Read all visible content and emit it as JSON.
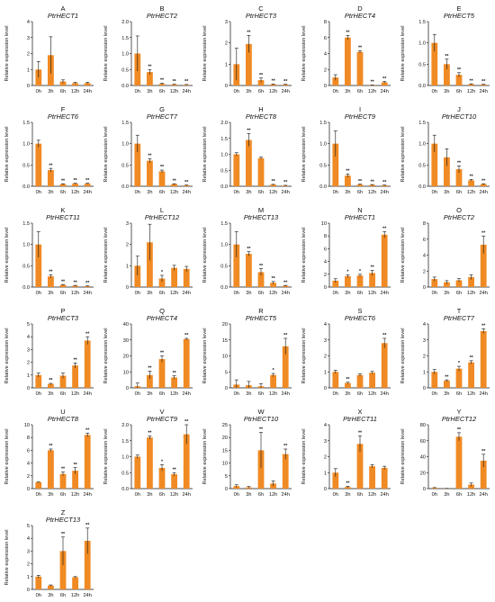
{
  "figure": {
    "ylabel": "Relative expression level",
    "categories": [
      "0h",
      "3h",
      "6h",
      "12h",
      "24h"
    ],
    "bar_color": "#f08a24"
  },
  "chart_data": [
    {
      "type": "bar",
      "letter": "A",
      "title": "PtrHECT1",
      "categories": [
        "0h",
        "3h",
        "6h",
        "12h",
        "24h"
      ],
      "values": [
        1.0,
        1.9,
        0.25,
        0.15,
        0.15
      ],
      "errors": [
        0.5,
        1.15,
        0.1,
        0.05,
        0.05
      ],
      "sig": [
        "",
        "",
        "",
        "",
        ""
      ],
      "ylabel": "Relative expression level",
      "ylim": [
        0,
        4
      ],
      "yticks": [
        "0",
        "1",
        "2",
        "3",
        "4"
      ]
    },
    {
      "type": "bar",
      "letter": "B",
      "title": "PtrHECT2",
      "categories": [
        "0h",
        "3h",
        "6h",
        "12h",
        "24h"
      ],
      "values": [
        1.0,
        0.42,
        0.05,
        0.03,
        0.02
      ],
      "errors": [
        0.55,
        0.08,
        0.02,
        0.01,
        0.01
      ],
      "sig": [
        "",
        "**",
        "**",
        "**",
        "**"
      ],
      "ylabel": "Relative expression level",
      "ylim": [
        0,
        2.0
      ],
      "yticks": [
        "0.0",
        "0.5",
        "1.0",
        "1.5",
        "2.0"
      ]
    },
    {
      "type": "bar",
      "letter": "C",
      "title": "PtrHECT3",
      "categories": [
        "0h",
        "3h",
        "6h",
        "12h",
        "24h"
      ],
      "values": [
        1.0,
        1.95,
        0.25,
        0.05,
        0.04
      ],
      "errors": [
        0.75,
        0.4,
        0.1,
        0.02,
        0.02
      ],
      "sig": [
        "",
        "**",
        "**",
        "**",
        "**"
      ],
      "ylabel": "Relative expression level",
      "ylim": [
        0,
        3
      ],
      "yticks": [
        "0",
        "1",
        "2",
        "3"
      ]
    },
    {
      "type": "bar",
      "letter": "D",
      "title": "PtrHECT4",
      "categories": [
        "0h",
        "3h",
        "6h",
        "12h",
        "24h"
      ],
      "values": [
        1.0,
        6.0,
        4.2,
        0.05,
        0.4
      ],
      "errors": [
        0.35,
        0.25,
        0.15,
        0.02,
        0.1
      ],
      "sig": [
        "",
        "**",
        "**",
        "**",
        "**"
      ],
      "ylabel": "Relative expression level",
      "ylim": [
        0,
        8
      ],
      "yticks": [
        "0",
        "2",
        "4",
        "6",
        "8"
      ]
    },
    {
      "type": "bar",
      "letter": "E",
      "title": "PtrHECT5",
      "categories": [
        "0h",
        "3h",
        "6h",
        "12h",
        "24h"
      ],
      "values": [
        1.0,
        0.5,
        0.25,
        0.03,
        0.02
      ],
      "errors": [
        0.2,
        0.12,
        0.05,
        0.01,
        0.01
      ],
      "sig": [
        "",
        "**",
        "**",
        "**",
        "**"
      ],
      "ylabel": "Relative expression level",
      "ylim": [
        0,
        1.5
      ],
      "yticks": [
        "0.0",
        "0.5",
        "1.0",
        "1.5"
      ]
    },
    {
      "type": "bar",
      "letter": "F",
      "title": "PtrHECT6",
      "categories": [
        "0h",
        "3h",
        "6h",
        "12h",
        "24h"
      ],
      "values": [
        1.0,
        0.38,
        0.05,
        0.06,
        0.06
      ],
      "errors": [
        0.08,
        0.04,
        0.01,
        0.01,
        0.01
      ],
      "sig": [
        "",
        "**",
        "**",
        "**",
        "**"
      ],
      "ylabel": "Relative expression level",
      "ylim": [
        0,
        1.5
      ],
      "yticks": [
        "0.0",
        "0.5",
        "1.0",
        "1.5"
      ]
    },
    {
      "type": "bar",
      "letter": "G",
      "title": "PtrHECT7",
      "categories": [
        "0h",
        "3h",
        "6h",
        "12h",
        "24h"
      ],
      "values": [
        1.0,
        0.6,
        0.35,
        0.05,
        0.02
      ],
      "errors": [
        0.2,
        0.05,
        0.03,
        0.01,
        0.01
      ],
      "sig": [
        "",
        "**",
        "**",
        "**",
        "**"
      ],
      "ylabel": "Relative expression level",
      "ylim": [
        0,
        1.5
      ],
      "yticks": [
        "0.0",
        "0.5",
        "1.0",
        "1.5"
      ]
    },
    {
      "type": "bar",
      "letter": "H",
      "title": "PtrHECT8",
      "categories": [
        "0h",
        "3h",
        "6h",
        "12h",
        "24h"
      ],
      "values": [
        1.0,
        1.45,
        0.88,
        0.05,
        0.02
      ],
      "errors": [
        0.05,
        0.2,
        0.03,
        0.01,
        0.01
      ],
      "sig": [
        "",
        "**",
        "",
        "**",
        "**"
      ],
      "ylabel": "Relative expression level",
      "ylim": [
        0,
        2.0
      ],
      "yticks": [
        "0.0",
        "0.5",
        "1.0",
        "1.5",
        "2.0"
      ]
    },
    {
      "type": "bar",
      "letter": "I",
      "title": "PtrHECT9",
      "categories": [
        "0h",
        "3h",
        "6h",
        "12h",
        "24h"
      ],
      "values": [
        1.0,
        0.25,
        0.04,
        0.03,
        0.02
      ],
      "errors": [
        0.3,
        0.04,
        0.01,
        0.01,
        0.01
      ],
      "sig": [
        "",
        "**",
        "**",
        "**",
        "**"
      ],
      "ylabel": "Relative expression level",
      "ylim": [
        0,
        1.5
      ],
      "yticks": [
        "0.0",
        "0.5",
        "1.0",
        "1.5"
      ]
    },
    {
      "type": "bar",
      "letter": "J",
      "title": "PtrHECT10",
      "categories": [
        "0h",
        "3h",
        "6h",
        "12h",
        "24h"
      ],
      "values": [
        1.0,
        0.68,
        0.4,
        0.14,
        0.05
      ],
      "errors": [
        0.2,
        0.2,
        0.08,
        0.02,
        0.01
      ],
      "sig": [
        "",
        "",
        "**",
        "**",
        "**"
      ],
      "ylabel": "Relative expression level",
      "ylim": [
        0,
        1.5
      ],
      "yticks": [
        "0.0",
        "0.5",
        "1.0",
        "1.5"
      ]
    },
    {
      "type": "bar",
      "letter": "K",
      "title": "PtrHECT11",
      "categories": [
        "0h",
        "3h",
        "6h",
        "12h",
        "24h"
      ],
      "values": [
        1.0,
        0.25,
        0.05,
        0.03,
        0.02
      ],
      "errors": [
        0.3,
        0.04,
        0.01,
        0.01,
        0.01
      ],
      "sig": [
        "",
        "**",
        "**",
        "**",
        "**"
      ],
      "ylabel": "Relative expression level",
      "ylim": [
        0,
        1.5
      ],
      "yticks": [
        "0.0",
        "0.5",
        "1.0",
        "1.5"
      ]
    },
    {
      "type": "bar",
      "letter": "L",
      "title": "PtrHECT12",
      "categories": [
        "0h",
        "3h",
        "6h",
        "12h",
        "24h"
      ],
      "values": [
        1.0,
        2.1,
        0.4,
        0.9,
        0.85
      ],
      "errors": [
        0.45,
        0.85,
        0.15,
        0.12,
        0.12
      ],
      "sig": [
        "",
        "",
        "*",
        "",
        ""
      ],
      "ylabel": "Relative expression level",
      "ylim": [
        0,
        3
      ],
      "yticks": [
        "0",
        "1",
        "2",
        "3"
      ]
    },
    {
      "type": "bar",
      "letter": "M",
      "title": "PtrHECT13",
      "categories": [
        "0h",
        "3h",
        "6h",
        "12h",
        "24h"
      ],
      "values": [
        1.0,
        0.78,
        0.35,
        0.1,
        0.03
      ],
      "errors": [
        0.3,
        0.05,
        0.08,
        0.03,
        0.01
      ],
      "sig": [
        "",
        "**",
        "**",
        "**",
        "**"
      ],
      "ylabel": "Relative expression level",
      "ylim": [
        0,
        1.5
      ],
      "yticks": [
        "0.0",
        "0.5",
        "1.0",
        "1.5"
      ]
    },
    {
      "type": "bar",
      "letter": "N",
      "title": "PtrHECT1",
      "categories": [
        "0h",
        "3h",
        "6h",
        "12h",
        "24h"
      ],
      "values": [
        1.0,
        1.7,
        1.8,
        2.2,
        8.2
      ],
      "errors": [
        0.3,
        0.2,
        0.2,
        0.4,
        0.5
      ],
      "sig": [
        "",
        "*",
        "*",
        "**",
        "**"
      ],
      "ylabel": "Relative expression level",
      "ylim": [
        0,
        10
      ],
      "yticks": [
        "0",
        "2",
        "4",
        "6",
        "8",
        "10"
      ]
    },
    {
      "type": "bar",
      "letter": "O",
      "title": "PtrHECT2",
      "categories": [
        "0h",
        "3h",
        "6h",
        "12h",
        "24h"
      ],
      "values": [
        1.0,
        0.6,
        0.85,
        1.25,
        5.3
      ],
      "errors": [
        0.25,
        0.2,
        0.2,
        0.3,
        1.1
      ],
      "sig": [
        "",
        "",
        "",
        "",
        "**"
      ],
      "ylabel": "Relative expression level",
      "ylim": [
        0,
        8
      ],
      "yticks": [
        "0",
        "2",
        "4",
        "6",
        "8"
      ]
    },
    {
      "type": "bar",
      "letter": "P",
      "title": "PtrHECT3",
      "categories": [
        "0h",
        "3h",
        "6h",
        "12h",
        "24h"
      ],
      "values": [
        1.0,
        0.3,
        0.95,
        1.75,
        3.7
      ],
      "errors": [
        0.15,
        0.05,
        0.2,
        0.2,
        0.3
      ],
      "sig": [
        "",
        "**",
        "",
        "**",
        "**"
      ],
      "ylabel": "Relative expression level",
      "ylim": [
        0,
        5
      ],
      "yticks": [
        "0",
        "1",
        "2",
        "3",
        "4",
        "5"
      ]
    },
    {
      "type": "bar",
      "letter": "Q",
      "title": "PtrHECT4",
      "categories": [
        "0h",
        "3h",
        "6h",
        "12h",
        "24h"
      ],
      "values": [
        1.0,
        8.0,
        18.0,
        6.5,
        30.5
      ],
      "errors": [
        2.0,
        2.5,
        2.0,
        1.0,
        0.5
      ],
      "sig": [
        "",
        "**",
        "**",
        "**",
        "**"
      ],
      "ylabel": "Relative expression level",
      "ylim": [
        0,
        40
      ],
      "yticks": [
        "0",
        "10",
        "20",
        "30",
        "40"
      ]
    },
    {
      "type": "bar",
      "letter": "R",
      "title": "PtrHECT5",
      "categories": [
        "0h",
        "3h",
        "6h",
        "12h",
        "24h"
      ],
      "values": [
        1.0,
        0.8,
        0.5,
        4.0,
        13.0
      ],
      "errors": [
        1.5,
        1.2,
        0.8,
        0.5,
        2.5
      ],
      "sig": [
        "",
        "",
        "",
        "*",
        "**"
      ],
      "ylabel": "Relative expression level",
      "ylim": [
        0,
        20
      ],
      "yticks": [
        "0",
        "5",
        "10",
        "15",
        "20"
      ]
    },
    {
      "type": "bar",
      "letter": "S",
      "title": "PtrHECT6",
      "categories": [
        "0h",
        "3h",
        "6h",
        "12h",
        "24h"
      ],
      "values": [
        1.0,
        0.3,
        0.8,
        0.95,
        2.8
      ],
      "errors": [
        0.1,
        0.05,
        0.08,
        0.08,
        0.3
      ],
      "sig": [
        "",
        "**",
        "",
        "",
        "**"
      ],
      "ylabel": "Relative expression level",
      "ylim": [
        0,
        4
      ],
      "yticks": [
        "0",
        "1",
        "2",
        "3",
        "4"
      ]
    },
    {
      "type": "bar",
      "letter": "T",
      "title": "PtrHECT7",
      "categories": [
        "0h",
        "3h",
        "6h",
        "12h",
        "24h"
      ],
      "values": [
        1.0,
        0.45,
        1.2,
        1.6,
        3.55
      ],
      "errors": [
        0.15,
        0.05,
        0.15,
        0.1,
        0.15
      ],
      "sig": [
        "",
        "**",
        "*",
        "**",
        "**"
      ],
      "ylabel": "Relative expression level",
      "ylim": [
        0,
        4
      ],
      "yticks": [
        "0",
        "1",
        "2",
        "3",
        "4"
      ]
    },
    {
      "type": "bar",
      "letter": "U",
      "title": "PtrHECT8",
      "categories": [
        "0h",
        "3h",
        "6h",
        "12h",
        "24h"
      ],
      "values": [
        1.0,
        6.0,
        2.3,
        2.8,
        8.4
      ],
      "errors": [
        0.05,
        0.2,
        0.3,
        0.5,
        0.3
      ],
      "sig": [
        "",
        "**",
        "**",
        "**",
        "**"
      ],
      "ylabel": "Relative expression level",
      "ylim": [
        0,
        10
      ],
      "yticks": [
        "0",
        "2",
        "4",
        "6",
        "8",
        "10"
      ]
    },
    {
      "type": "bar",
      "letter": "V",
      "title": "PtrHECT9",
      "categories": [
        "0h",
        "3h",
        "6h",
        "12h",
        "24h"
      ],
      "values": [
        1.0,
        1.6,
        0.65,
        0.45,
        1.7
      ],
      "errors": [
        0.05,
        0.05,
        0.1,
        0.05,
        0.3
      ],
      "sig": [
        "",
        "**",
        "*",
        "**",
        "**"
      ],
      "ylabel": "Relative expression level",
      "ylim": [
        0,
        2.0
      ],
      "yticks": [
        "0.0",
        "0.5",
        "1.0",
        "1.5",
        "2.0"
      ]
    },
    {
      "type": "bar",
      "letter": "W",
      "title": "PtrHECT10",
      "categories": [
        "0h",
        "3h",
        "6h",
        "12h",
        "24h"
      ],
      "values": [
        1.0,
        0.5,
        15.0,
        2.0,
        13.5
      ],
      "errors": [
        0.5,
        0.3,
        7.0,
        1.0,
        2.0
      ],
      "sig": [
        "",
        "",
        "**",
        "",
        "**"
      ],
      "ylabel": "Relative expression level",
      "ylim": [
        0,
        25
      ],
      "yticks": [
        "0",
        "5",
        "10",
        "15",
        "20",
        "25"
      ]
    },
    {
      "type": "bar",
      "letter": "X",
      "title": "PtrHECT11",
      "categories": [
        "0h",
        "3h",
        "6h",
        "12h",
        "24h"
      ],
      "values": [
        1.0,
        0.1,
        2.8,
        1.4,
        1.3
      ],
      "errors": [
        0.25,
        0.05,
        0.5,
        0.1,
        0.1
      ],
      "sig": [
        "",
        "**",
        "**",
        "",
        ""
      ],
      "ylabel": "Relative expression level",
      "ylim": [
        0,
        4
      ],
      "yticks": [
        "0",
        "1",
        "2",
        "3",
        "4"
      ]
    },
    {
      "type": "bar",
      "letter": "Y",
      "title": "PtrHECT12",
      "categories": [
        "0h",
        "3h",
        "6h",
        "12h",
        "24h"
      ],
      "values": [
        1.0,
        0.2,
        65.0,
        5.0,
        35.0
      ],
      "errors": [
        0.3,
        0.1,
        5.0,
        2.0,
        8.0
      ],
      "sig": [
        "",
        "",
        "**",
        "",
        "**"
      ],
      "ylabel": "Relative expression level",
      "ylim": [
        0,
        80
      ],
      "yticks": [
        "0",
        "20",
        "40",
        "60",
        "80"
      ]
    },
    {
      "type": "bar",
      "letter": "Z",
      "title": "PtrHECT13",
      "categories": [
        "0h",
        "3h",
        "6h",
        "12h",
        "24h"
      ],
      "values": [
        1.0,
        0.3,
        3.0,
        0.95,
        3.8
      ],
      "errors": [
        0.1,
        0.05,
        1.1,
        0.05,
        1.0
      ],
      "sig": [
        "",
        "",
        "**",
        "",
        "**"
      ],
      "ylabel": "Relative expression level",
      "ylim": [
        0,
        5
      ],
      "yticks": [
        "0",
        "1",
        "2",
        "3",
        "4",
        "5"
      ]
    }
  ]
}
